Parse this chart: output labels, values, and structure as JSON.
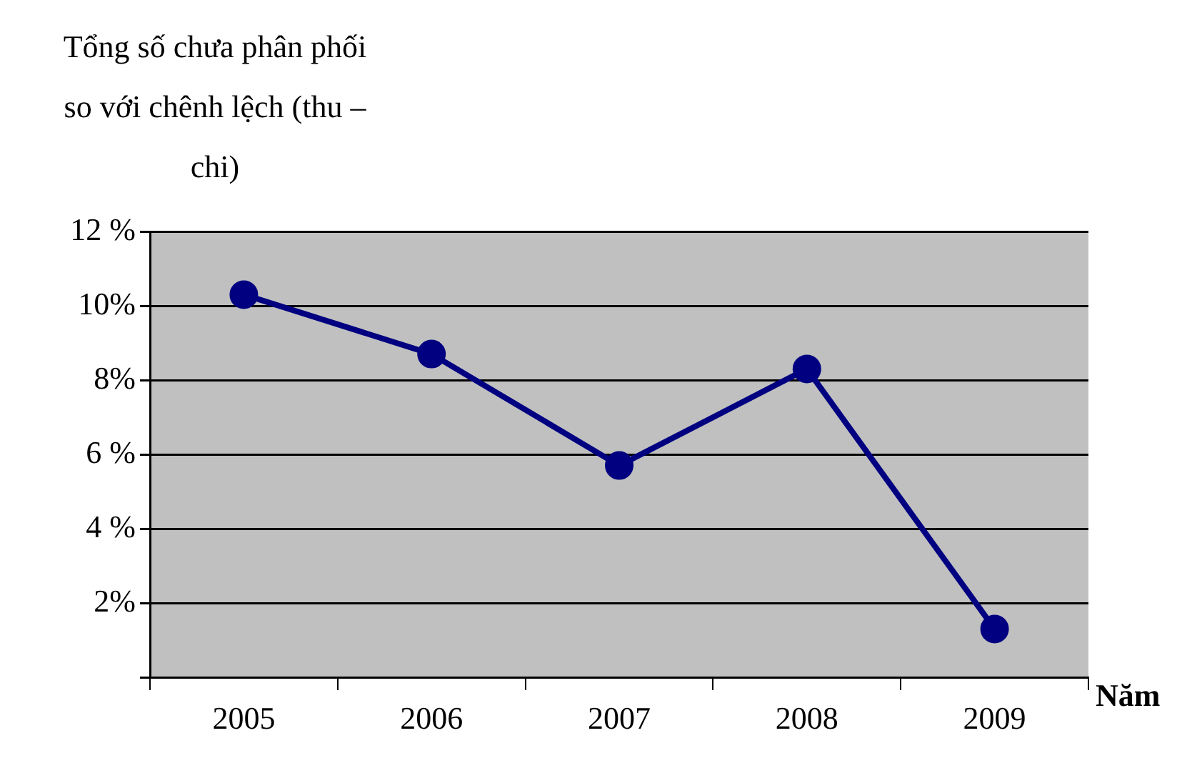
{
  "chart_data": {
    "type": "line",
    "ylabel": "Tổng số chưa phân phối so với chênh lệch (thu – chi)",
    "xlabel": "Năm",
    "categories": [
      "2005",
      "2006",
      "2007",
      "2008",
      "2009"
    ],
    "series": [
      {
        "color": "#000080",
        "values": [
          10.3,
          8.7,
          5.7,
          8.3,
          1.3
        ]
      }
    ],
    "ylim": [
      0,
      12
    ],
    "yticks": [
      {
        "value": 0,
        "label": null
      },
      {
        "value": 2,
        "label": "2%"
      },
      {
        "value": 4,
        "label": "4 %"
      },
      {
        "value": 6,
        "label": "6 %"
      },
      {
        "value": 8,
        "label": "8%"
      },
      {
        "value": 10,
        "label": "10%"
      },
      {
        "value": 12,
        "label": "12 %"
      }
    ],
    "grid": "y",
    "legend": false,
    "marker": "circle",
    "line_style": "solid"
  }
}
